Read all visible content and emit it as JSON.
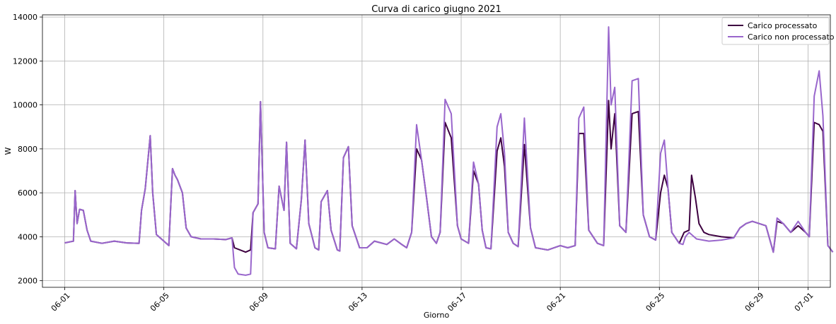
{
  "chart_data": {
    "type": "line",
    "title": "Curva di carico giugno 2021",
    "xlabel": "Giorno",
    "ylabel": "W",
    "xlim": [
      -0.9,
      30.9
    ],
    "ylim": [
      1700,
      14100
    ],
    "grid": true,
    "legend_placement": "top-right",
    "x_ticks": [
      {
        "day": 0,
        "label": "06-01"
      },
      {
        "day": 4,
        "label": "06-05"
      },
      {
        "day": 8,
        "label": "06-09"
      },
      {
        "day": 12,
        "label": "06-13"
      },
      {
        "day": 16,
        "label": "06-17"
      },
      {
        "day": 20,
        "label": "06-21"
      },
      {
        "day": 24,
        "label": "06-25"
      },
      {
        "day": 28,
        "label": "06-29"
      },
      {
        "day": 30,
        "label": "07-01"
      }
    ],
    "y_ticks": [
      2000,
      4000,
      6000,
      8000,
      10000,
      12000,
      14000
    ],
    "series": [
      {
        "name": "Carico processato",
        "color": "#3d0040",
        "points": [
          [
            0,
            3720
          ],
          [
            0.25,
            3780
          ],
          [
            0.35,
            3800
          ],
          [
            0.42,
            6100
          ],
          [
            0.5,
            4600
          ],
          [
            0.6,
            5250
          ],
          [
            0.75,
            5200
          ],
          [
            0.9,
            4300
          ],
          [
            1.05,
            3800
          ],
          [
            1.5,
            3700
          ],
          [
            2,
            3800
          ],
          [
            2.5,
            3720
          ],
          [
            3,
            3700
          ],
          [
            3.1,
            5200
          ],
          [
            3.25,
            6200
          ],
          [
            3.45,
            8600
          ],
          [
            3.55,
            6000
          ],
          [
            3.7,
            4100
          ],
          [
            4,
            3800
          ],
          [
            4.2,
            3600
          ],
          [
            4.35,
            7100
          ],
          [
            4.45,
            6800
          ],
          [
            4.55,
            6600
          ],
          [
            4.75,
            6000
          ],
          [
            4.9,
            4400
          ],
          [
            5.1,
            4000
          ],
          [
            5.5,
            3900
          ],
          [
            6,
            3900
          ],
          [
            6.5,
            3870
          ],
          [
            6.75,
            3950
          ],
          [
            6.85,
            3500
          ],
          [
            7.3,
            3300
          ],
          [
            7.5,
            3400
          ],
          [
            7.6,
            5100
          ],
          [
            7.8,
            5500
          ],
          [
            7.9,
            10150
          ],
          [
            8.05,
            4200
          ],
          [
            8.2,
            3500
          ],
          [
            8.5,
            3450
          ],
          [
            8.65,
            6300
          ],
          [
            8.85,
            5200
          ],
          [
            8.95,
            8300
          ],
          [
            9.1,
            3700
          ],
          [
            9.35,
            3450
          ],
          [
            9.55,
            5700
          ],
          [
            9.7,
            8400
          ],
          [
            9.85,
            4600
          ],
          [
            10.1,
            3500
          ],
          [
            10.25,
            3400
          ],
          [
            10.35,
            5600
          ],
          [
            10.6,
            6100
          ],
          [
            10.75,
            4300
          ],
          [
            11,
            3400
          ],
          [
            11.1,
            3350
          ],
          [
            11.25,
            7600
          ],
          [
            11.45,
            8100
          ],
          [
            11.6,
            4500
          ],
          [
            11.9,
            3500
          ],
          [
            12.2,
            3500
          ],
          [
            12.5,
            3800
          ],
          [
            13,
            3650
          ],
          [
            13.3,
            3900
          ],
          [
            13.6,
            3650
          ],
          [
            13.8,
            3500
          ],
          [
            14,
            4200
          ],
          [
            14.2,
            8000
          ],
          [
            14.4,
            7500
          ],
          [
            14.6,
            5800
          ],
          [
            14.8,
            4000
          ],
          [
            15,
            3700
          ],
          [
            15.15,
            4200
          ],
          [
            15.35,
            9200
          ],
          [
            15.6,
            8500
          ],
          [
            15.85,
            4500
          ],
          [
            16,
            3900
          ],
          [
            16.3,
            3700
          ],
          [
            16.5,
            7000
          ],
          [
            16.7,
            6400
          ],
          [
            16.85,
            4300
          ],
          [
            17,
            3500
          ],
          [
            17.2,
            3450
          ],
          [
            17.45,
            7900
          ],
          [
            17.6,
            8500
          ],
          [
            17.75,
            7200
          ],
          [
            17.9,
            4200
          ],
          [
            18.1,
            3700
          ],
          [
            18.3,
            3550
          ],
          [
            18.55,
            8200
          ],
          [
            18.8,
            4400
          ],
          [
            19,
            3500
          ],
          [
            19.5,
            3400
          ],
          [
            20,
            3600
          ],
          [
            20.3,
            3500
          ],
          [
            20.6,
            3600
          ],
          [
            20.75,
            8700
          ],
          [
            20.95,
            8700
          ],
          [
            21.15,
            4300
          ],
          [
            21.5,
            3700
          ],
          [
            21.75,
            3600
          ],
          [
            21.95,
            10200
          ],
          [
            22.05,
            8000
          ],
          [
            22.2,
            9600
          ],
          [
            22.4,
            4500
          ],
          [
            22.65,
            4200
          ],
          [
            22.9,
            9600
          ],
          [
            23.15,
            9700
          ],
          [
            23.35,
            5000
          ],
          [
            23.6,
            4000
          ],
          [
            23.85,
            3850
          ],
          [
            24.05,
            6000
          ],
          [
            24.2,
            6800
          ],
          [
            24.35,
            6200
          ],
          [
            24.5,
            4200
          ],
          [
            24.8,
            3700
          ],
          [
            25,
            4200
          ],
          [
            25.2,
            4300
          ],
          [
            25.3,
            6800
          ],
          [
            25.45,
            5800
          ],
          [
            25.6,
            4600
          ],
          [
            25.8,
            4200
          ],
          [
            26,
            4100
          ],
          [
            26.5,
            4000
          ],
          [
            27,
            3950
          ],
          [
            27.25,
            4400
          ],
          [
            27.5,
            4600
          ],
          [
            27.75,
            4700
          ],
          [
            28.3,
            4500
          ],
          [
            28.6,
            3300
          ],
          [
            28.75,
            4700
          ],
          [
            29,
            4600
          ],
          [
            29.3,
            4200
          ],
          [
            29.6,
            4500
          ],
          [
            29.9,
            4200
          ],
          [
            30.05,
            4000
          ],
          [
            30.25,
            9200
          ],
          [
            30.45,
            9100
          ],
          [
            30.6,
            8800
          ],
          [
            30.8,
            3600
          ],
          [
            31,
            3300
          ]
        ]
      },
      {
        "name": "Carico non processato",
        "color": "#9966cc",
        "points": [
          [
            0,
            3720
          ],
          [
            0.25,
            3780
          ],
          [
            0.35,
            3800
          ],
          [
            0.42,
            6100
          ],
          [
            0.5,
            4600
          ],
          [
            0.6,
            5250
          ],
          [
            0.75,
            5200
          ],
          [
            0.9,
            4300
          ],
          [
            1.05,
            3800
          ],
          [
            1.5,
            3700
          ],
          [
            2,
            3800
          ],
          [
            2.5,
            3720
          ],
          [
            3,
            3700
          ],
          [
            3.1,
            5200
          ],
          [
            3.25,
            6200
          ],
          [
            3.45,
            8600
          ],
          [
            3.55,
            6000
          ],
          [
            3.7,
            4100
          ],
          [
            4,
            3800
          ],
          [
            4.2,
            3600
          ],
          [
            4.35,
            7100
          ],
          [
            4.45,
            6800
          ],
          [
            4.55,
            6600
          ],
          [
            4.75,
            6000
          ],
          [
            4.9,
            4400
          ],
          [
            5.1,
            4000
          ],
          [
            5.5,
            3900
          ],
          [
            6,
            3900
          ],
          [
            6.5,
            3870
          ],
          [
            6.75,
            3950
          ],
          [
            6.85,
            2600
          ],
          [
            7.0,
            2300
          ],
          [
            7.3,
            2250
          ],
          [
            7.5,
            2300
          ],
          [
            7.6,
            5100
          ],
          [
            7.8,
            5500
          ],
          [
            7.9,
            10150
          ],
          [
            8.05,
            4200
          ],
          [
            8.2,
            3500
          ],
          [
            8.5,
            3450
          ],
          [
            8.65,
            6300
          ],
          [
            8.85,
            5200
          ],
          [
            8.95,
            8300
          ],
          [
            9.1,
            3700
          ],
          [
            9.35,
            3450
          ],
          [
            9.55,
            5700
          ],
          [
            9.7,
            8400
          ],
          [
            9.85,
            4600
          ],
          [
            10.1,
            3500
          ],
          [
            10.25,
            3400
          ],
          [
            10.35,
            5600
          ],
          [
            10.6,
            6100
          ],
          [
            10.75,
            4300
          ],
          [
            11,
            3400
          ],
          [
            11.1,
            3350
          ],
          [
            11.25,
            7600
          ],
          [
            11.45,
            8100
          ],
          [
            11.6,
            4500
          ],
          [
            11.9,
            3500
          ],
          [
            12.2,
            3500
          ],
          [
            12.5,
            3800
          ],
          [
            13,
            3650
          ],
          [
            13.3,
            3900
          ],
          [
            13.6,
            3650
          ],
          [
            13.8,
            3500
          ],
          [
            14,
            4200
          ],
          [
            14.2,
            9100
          ],
          [
            14.4,
            7500
          ],
          [
            14.6,
            5800
          ],
          [
            14.8,
            4000
          ],
          [
            15,
            3700
          ],
          [
            15.15,
            4200
          ],
          [
            15.35,
            10250
          ],
          [
            15.6,
            9600
          ],
          [
            15.85,
            4500
          ],
          [
            16,
            3900
          ],
          [
            16.3,
            3700
          ],
          [
            16.5,
            7400
          ],
          [
            16.7,
            6400
          ],
          [
            16.85,
            4300
          ],
          [
            17,
            3500
          ],
          [
            17.2,
            3450
          ],
          [
            17.45,
            9000
          ],
          [
            17.6,
            9600
          ],
          [
            17.75,
            7800
          ],
          [
            17.9,
            4200
          ],
          [
            18.1,
            3700
          ],
          [
            18.3,
            3550
          ],
          [
            18.55,
            9400
          ],
          [
            18.8,
            4400
          ],
          [
            19,
            3500
          ],
          [
            19.5,
            3400
          ],
          [
            20,
            3600
          ],
          [
            20.3,
            3500
          ],
          [
            20.6,
            3600
          ],
          [
            20.75,
            9400
          ],
          [
            20.95,
            9900
          ],
          [
            21.15,
            4300
          ],
          [
            21.5,
            3700
          ],
          [
            21.75,
            3600
          ],
          [
            21.95,
            13550
          ],
          [
            22.05,
            10000
          ],
          [
            22.2,
            10800
          ],
          [
            22.4,
            4500
          ],
          [
            22.65,
            4200
          ],
          [
            22.9,
            11100
          ],
          [
            23.15,
            11200
          ],
          [
            23.35,
            5000
          ],
          [
            23.6,
            4000
          ],
          [
            23.85,
            3850
          ],
          [
            24.05,
            7800
          ],
          [
            24.2,
            8400
          ],
          [
            24.35,
            6200
          ],
          [
            24.5,
            4200
          ],
          [
            24.8,
            3700
          ],
          [
            24.95,
            3650
          ],
          [
            25.05,
            4000
          ],
          [
            25.2,
            4200
          ],
          [
            25.5,
            3900
          ],
          [
            26,
            3800
          ],
          [
            26.5,
            3850
          ],
          [
            27,
            3950
          ],
          [
            27.25,
            4400
          ],
          [
            27.5,
            4600
          ],
          [
            27.75,
            4700
          ],
          [
            28.3,
            4500
          ],
          [
            28.6,
            3300
          ],
          [
            28.75,
            4850
          ],
          [
            29,
            4600
          ],
          [
            29.3,
            4200
          ],
          [
            29.6,
            4700
          ],
          [
            29.9,
            4200
          ],
          [
            30.05,
            4000
          ],
          [
            30.25,
            10400
          ],
          [
            30.45,
            11550
          ],
          [
            30.6,
            9500
          ],
          [
            30.8,
            3600
          ],
          [
            31,
            3300
          ]
        ]
      }
    ]
  }
}
